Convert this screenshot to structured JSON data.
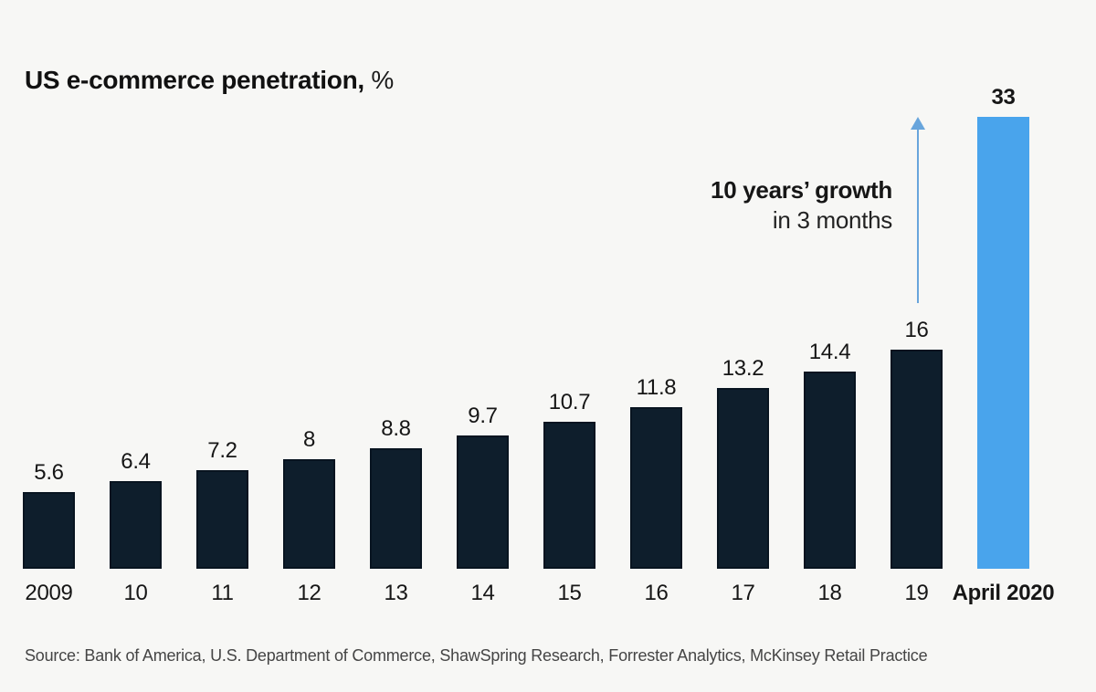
{
  "page": {
    "background": "#f7f7f5"
  },
  "chart_data": {
    "type": "bar",
    "title": "US e-commerce penetration, %",
    "title_main": "US e-commerce penetration,",
    "title_unit": " %",
    "xlabel": "",
    "ylabel": "US e-commerce penetration, %",
    "ylim": [
      0,
      33
    ],
    "grid": false,
    "legend": "none",
    "categories": [
      "2009",
      "10",
      "11",
      "12",
      "13",
      "14",
      "15",
      "16",
      "17",
      "18",
      "19",
      "April 2020"
    ],
    "values": [
      5.6,
      6.4,
      7.2,
      8,
      8.8,
      9.7,
      10.7,
      11.8,
      13.2,
      14.4,
      16,
      33
    ],
    "value_labels": [
      "5.6",
      "6.4",
      "7.2",
      "8",
      "8.8",
      "9.7",
      "10.7",
      "11.8",
      "13.2",
      "14.4",
      "16",
      "33"
    ],
    "highlight_index": 11,
    "highlight_category_bold": true,
    "highlight_value_bold": true,
    "annotation": {
      "line1": "10 years’ growth",
      "line2": "in 3 months",
      "arrow": "vertical-up, from top of 2019 bar toward 33 value"
    },
    "source": "Source: Bank of America, U.S. Department of Commerce, ShawSpring Research, Forrester Analytics, McKinsey Retail Practice",
    "colors": {
      "bar": "#0e1e2c",
      "bar_border": "#081420",
      "highlight_bar": "#49a4ec",
      "arrow": "#68a5dc",
      "background": "#f7f7f5",
      "text": "#161616",
      "source_text": "#454545"
    }
  }
}
